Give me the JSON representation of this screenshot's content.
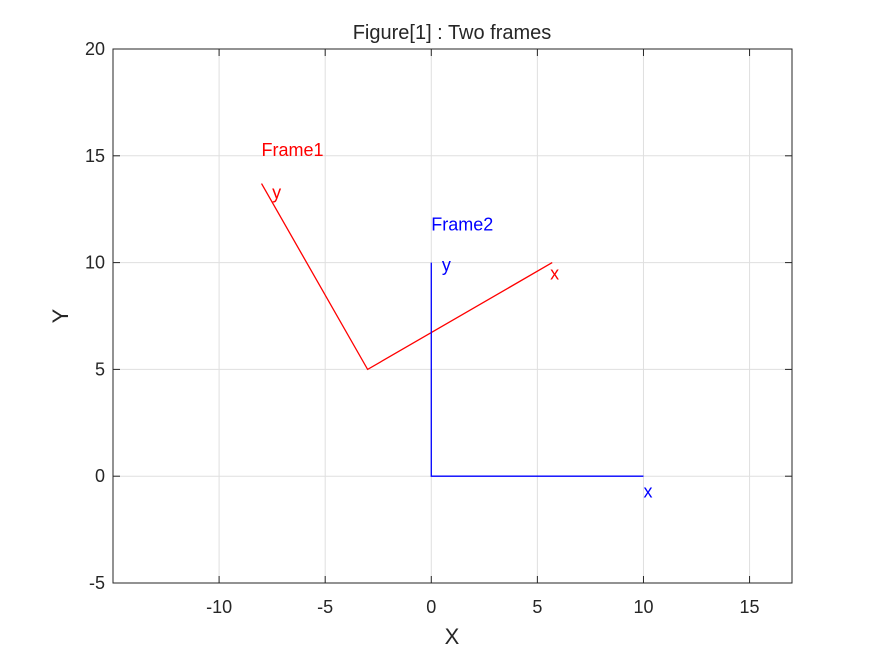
{
  "chart_data": {
    "type": "line",
    "title": "Figure[1] : Two frames",
    "xlabel": "X",
    "ylabel": "Y",
    "xlim": [
      -15,
      17
    ],
    "ylim": [
      -5,
      20
    ],
    "xticks": [
      -10,
      -5,
      0,
      5,
      10,
      15
    ],
    "yticks": [
      -5,
      0,
      5,
      10,
      15,
      20
    ],
    "grid": true,
    "series": [
      {
        "color": "#ff0000",
        "x": [
          -8.0,
          -3.0,
          5.7
        ],
        "y": [
          13.7,
          5.0,
          10.0
        ]
      },
      {
        "color": "#0000ff",
        "x": [
          0,
          0,
          10
        ],
        "y": [
          10,
          0,
          0
        ]
      }
    ],
    "annotations": [
      {
        "text": "Frame1",
        "x": -8.0,
        "y": 15.0,
        "color": "#ff0000"
      },
      {
        "text": "y",
        "x": -7.5,
        "y": 13.0,
        "color": "#ff0000"
      },
      {
        "text": "x",
        "x": 5.6,
        "y": 9.2,
        "color": "#ff0000"
      },
      {
        "text": "Frame2",
        "x": 0.0,
        "y": 11.5,
        "color": "#0000ff"
      },
      {
        "text": "y",
        "x": 0.5,
        "y": 9.6,
        "color": "#0000ff"
      },
      {
        "text": "x",
        "x": 10.0,
        "y": -1.0,
        "color": "#0000ff"
      }
    ]
  }
}
